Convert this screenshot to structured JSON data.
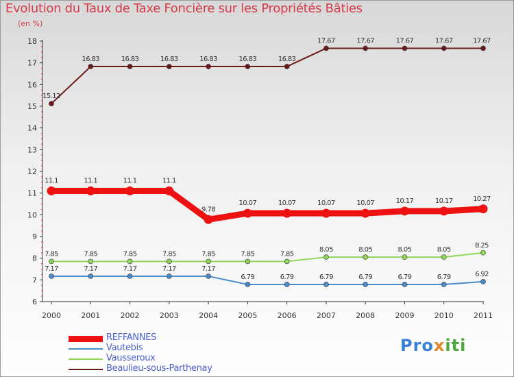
{
  "header": {
    "title": "Evolution du Taux de Taxe Foncière sur les Propriétés Bâties",
    "subtitle": "(en %)"
  },
  "brand": {
    "logo_text": "Proxiti",
    "logo_parts": [
      "Pro",
      "x",
      "iti"
    ],
    "logo_colors": [
      "#3a7fd5",
      "#e0892a",
      "#4aa83a"
    ]
  },
  "colors": {
    "title": "#d63a4a",
    "legend_text": "#4a5fd0",
    "axis": "#333333"
  },
  "chart_data": {
    "type": "line",
    "title": "Evolution du Taux de Taxe Foncière sur les Propriétés Bâties",
    "ylabel": "(en %)",
    "xlabel": "",
    "ylim": [
      6,
      18
    ],
    "yticks": [
      "6",
      "7",
      "8",
      "9",
      "10",
      "11",
      "12",
      "13",
      "14",
      "15",
      "16",
      "17",
      "18"
    ],
    "categories": [
      "2000",
      "2001",
      "2002",
      "2003",
      "2004",
      "2005",
      "2006",
      "2007",
      "2008",
      "2009",
      "2010",
      "2011"
    ],
    "series": [
      {
        "name": "Beaulieu-sous-Parthenay",
        "color": "#6b1a1a",
        "thick": false,
        "values": [
          15.12,
          16.83,
          16.83,
          16.83,
          16.83,
          16.83,
          16.83,
          17.67,
          17.67,
          17.67,
          17.67,
          17.67
        ],
        "labels": [
          "15.12",
          "16.83",
          "16.83",
          "16.83",
          "16.83",
          "16.83",
          "16.83",
          "17.67",
          "17.67",
          "17.67",
          "17.67",
          "17.67"
        ]
      },
      {
        "name": "REFFANNES",
        "color": "#ee1111",
        "thick": true,
        "values": [
          11.1,
          11.1,
          11.1,
          11.1,
          9.78,
          10.07,
          10.07,
          10.07,
          10.07,
          10.17,
          10.17,
          10.27
        ],
        "labels": [
          "11.1",
          "11.1",
          "11.1",
          "11.1",
          "9.78",
          "10.07",
          "10.07",
          "10.07",
          "10.07",
          "10.17",
          "10.17",
          "10.27"
        ]
      },
      {
        "name": "Vausseroux",
        "color": "#8fd65a",
        "thick": false,
        "values": [
          7.85,
          7.85,
          7.85,
          7.85,
          7.85,
          7.85,
          7.85,
          8.05,
          8.05,
          8.05,
          8.05,
          8.25
        ],
        "labels": [
          "7.85",
          "7.85",
          "7.85",
          "7.85",
          "7.85",
          "7.85",
          "7.85",
          "8.05",
          "8.05",
          "8.05",
          "8.05",
          "8.25"
        ]
      },
      {
        "name": "Vautebis",
        "color": "#4a8cc8",
        "thick": false,
        "values": [
          7.17,
          7.17,
          7.17,
          7.17,
          7.17,
          6.79,
          6.79,
          6.79,
          6.79,
          6.79,
          6.79,
          6.92
        ],
        "labels": [
          "7.17",
          "7.17",
          "7.17",
          "7.17",
          "7.17",
          "6.79",
          "6.79",
          "6.79",
          "6.79",
          "6.79",
          "6.79",
          "6.92"
        ]
      }
    ],
    "legend": [
      {
        "name": "REFFANNES",
        "color": "#ee1111",
        "thick": true
      },
      {
        "name": "Vautebis",
        "color": "#4a8cc8",
        "thick": false
      },
      {
        "name": "Vausseroux",
        "color": "#8fd65a",
        "thick": false
      },
      {
        "name": "Beaulieu-sous-Parthenay",
        "color": "#6b1a1a",
        "thick": false
      }
    ],
    "legend_position": "bottom-left"
  }
}
